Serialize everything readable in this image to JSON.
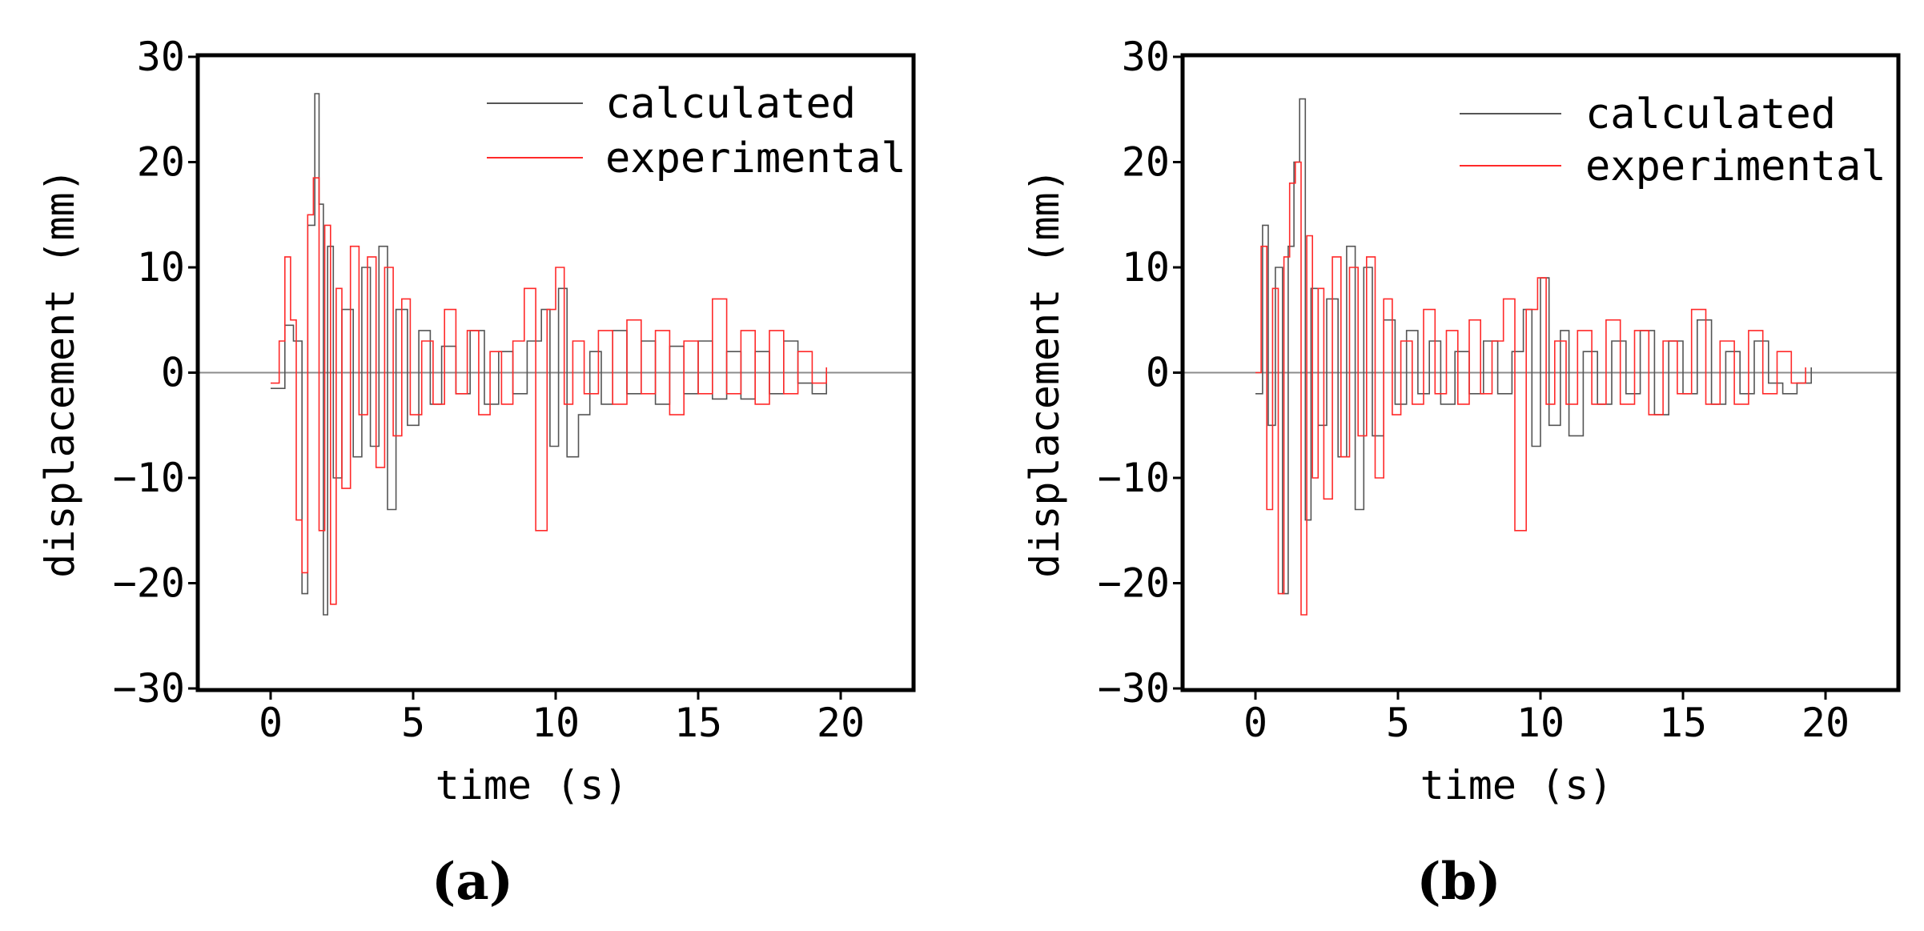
{
  "chart_data": [
    {
      "type": "line",
      "panel_label": "(a)",
      "xlabel": "time (s)",
      "ylabel": "displacement (mm)",
      "xlim": [
        -2.5,
        22.5
      ],
      "ylim": [
        -30,
        30
      ],
      "xticks": [
        0,
        5,
        10,
        15,
        20
      ],
      "yticks": [
        30,
        20,
        10,
        0,
        -10,
        -20,
        -30
      ],
      "xtick_labels": [
        "0",
        "5",
        "10",
        "15",
        "20"
      ],
      "ytick_labels": [
        "30",
        "20",
        "10",
        "0",
        "−10",
        "−20",
        "−30"
      ],
      "zero_line": true,
      "grid": false,
      "legend_position": "top-right",
      "series": [
        {
          "name": "calculated",
          "color": "#555555",
          "x": [
            0,
            0.5,
            0.8,
            1.1,
            1.3,
            1.55,
            1.7,
            1.85,
            2.0,
            2.2,
            2.5,
            2.9,
            3.2,
            3.5,
            3.8,
            4.1,
            4.4,
            4.8,
            5.2,
            5.6,
            6.0,
            6.5,
            7.0,
            7.5,
            8.0,
            8.5,
            9.0,
            9.5,
            9.8,
            10.1,
            10.4,
            10.8,
            11.2,
            11.6,
            12.0,
            12.5,
            13.0,
            13.5,
            14.0,
            14.5,
            15.0,
            15.5,
            16.0,
            16.5,
            17.0,
            17.5,
            18.0,
            18.5,
            19.0,
            19.5
          ],
          "y": [
            -1.5,
            4.5,
            3,
            -21,
            14,
            26.5,
            16,
            -23,
            12,
            -10,
            6,
            -8,
            10,
            -7,
            12,
            -13,
            6,
            -5,
            4,
            -3,
            2.5,
            -2,
            4,
            -3,
            2,
            -2,
            3,
            6,
            -7,
            8,
            -8,
            -4,
            2,
            -3,
            4,
            -2,
            3,
            -3,
            2.5,
            -2,
            3,
            -2.5,
            2,
            -2.5,
            2,
            -2,
            3,
            -1,
            -2,
            0
          ]
        },
        {
          "name": "experimental",
          "color": "#ff2a2a",
          "x": [
            0,
            0.3,
            0.5,
            0.7,
            0.9,
            1.1,
            1.3,
            1.5,
            1.7,
            1.9,
            2.1,
            2.3,
            2.5,
            2.8,
            3.1,
            3.4,
            3.7,
            4.0,
            4.3,
            4.6,
            4.9,
            5.3,
            5.7,
            6.1,
            6.5,
            6.9,
            7.3,
            7.7,
            8.1,
            8.5,
            8.9,
            9.3,
            9.7,
            10.0,
            10.3,
            10.6,
            11.0,
            11.5,
            12.0,
            12.5,
            13.0,
            13.5,
            14.0,
            14.5,
            15.0,
            15.5,
            16.0,
            16.5,
            17.0,
            17.5,
            18.0,
            18.5,
            19.0,
            19.5
          ],
          "y": [
            -1,
            3,
            11,
            5,
            -14,
            -19,
            15,
            18.5,
            -15,
            14,
            -22,
            8,
            -11,
            12,
            -4,
            11,
            -9,
            10,
            -6,
            7,
            -4,
            3,
            -3,
            6,
            -2,
            4,
            -4,
            2,
            -3,
            3,
            8,
            -15,
            6,
            10,
            -3,
            3,
            -2,
            4,
            -3,
            5,
            -2,
            4,
            -4,
            3,
            -2,
            7,
            -2,
            4,
            -3,
            4,
            -2,
            2,
            -1,
            0.5
          ]
        }
      ]
    },
    {
      "type": "line",
      "panel_label": "(b)",
      "xlabel": "time (s)",
      "ylabel": "displacement (mm)",
      "xlim": [
        -2.5,
        22.5
      ],
      "ylim": [
        -30,
        30
      ],
      "xticks": [
        0,
        5,
        10,
        15,
        20
      ],
      "yticks": [
        30,
        20,
        10,
        0,
        -10,
        -20,
        -30
      ],
      "xtick_labels": [
        "0",
        "5",
        "10",
        "15",
        "20"
      ],
      "ytick_labels": [
        "30",
        "20",
        "10",
        "0",
        "−10",
        "−20",
        "−30"
      ],
      "zero_line": true,
      "grid": false,
      "legend_position": "top-right",
      "series": [
        {
          "name": "calculated",
          "color": "#555555",
          "x": [
            0,
            0.25,
            0.45,
            0.7,
            0.95,
            1.15,
            1.35,
            1.55,
            1.75,
            1.95,
            2.2,
            2.5,
            2.9,
            3.2,
            3.5,
            3.8,
            4.1,
            4.5,
            4.9,
            5.3,
            5.7,
            6.1,
            6.5,
            7.0,
            7.5,
            8.0,
            8.5,
            9.0,
            9.4,
            9.7,
            10.0,
            10.3,
            10.7,
            11.0,
            11.5,
            12.0,
            12.5,
            13.0,
            13.5,
            14.0,
            14.5,
            15.0,
            15.5,
            16.0,
            16.5,
            17.0,
            17.5,
            18.0,
            18.5,
            19.0,
            19.5
          ],
          "y": [
            -2,
            14,
            -5,
            10,
            -21,
            12,
            20,
            26,
            -14,
            8,
            -5,
            7,
            -8,
            12,
            -13,
            10,
            -6,
            5,
            -3,
            4,
            -2,
            3,
            -3,
            2,
            -2,
            3,
            -2,
            2,
            6,
            -7,
            9,
            -5,
            4,
            -6,
            2,
            -3,
            3,
            -2,
            4,
            -4,
            3,
            -2,
            5,
            -3,
            2,
            -2,
            3,
            -1,
            -2,
            -1,
            0.5
          ]
        },
        {
          "name": "experimental",
          "color": "#ff2a2a",
          "x": [
            0,
            0.2,
            0.4,
            0.6,
            0.8,
            1.0,
            1.2,
            1.4,
            1.6,
            1.8,
            2.0,
            2.2,
            2.4,
            2.7,
            3.0,
            3.3,
            3.6,
            3.9,
            4.2,
            4.5,
            4.8,
            5.1,
            5.5,
            5.9,
            6.3,
            6.7,
            7.1,
            7.5,
            7.9,
            8.3,
            8.7,
            9.1,
            9.5,
            9.9,
            10.2,
            10.5,
            10.9,
            11.3,
            11.8,
            12.3,
            12.8,
            13.3,
            13.8,
            14.3,
            14.8,
            15.3,
            15.8,
            16.3,
            16.8,
            17.3,
            17.8,
            18.3,
            18.8,
            19.3
          ],
          "y": [
            0,
            12,
            -13,
            8,
            -21,
            11,
            18,
            20,
            -23,
            13,
            -10,
            8,
            -12,
            11,
            -8,
            10,
            -6,
            11,
            -10,
            7,
            -4,
            3,
            -3,
            6,
            -2,
            4,
            -3,
            5,
            -2,
            3,
            7,
            -15,
            6,
            9,
            -3,
            3,
            -3,
            4,
            -3,
            5,
            -3,
            4,
            -4,
            3,
            -2,
            6,
            -3,
            3,
            -3,
            4,
            -2,
            2,
            -1,
            0.5
          ]
        }
      ]
    }
  ]
}
